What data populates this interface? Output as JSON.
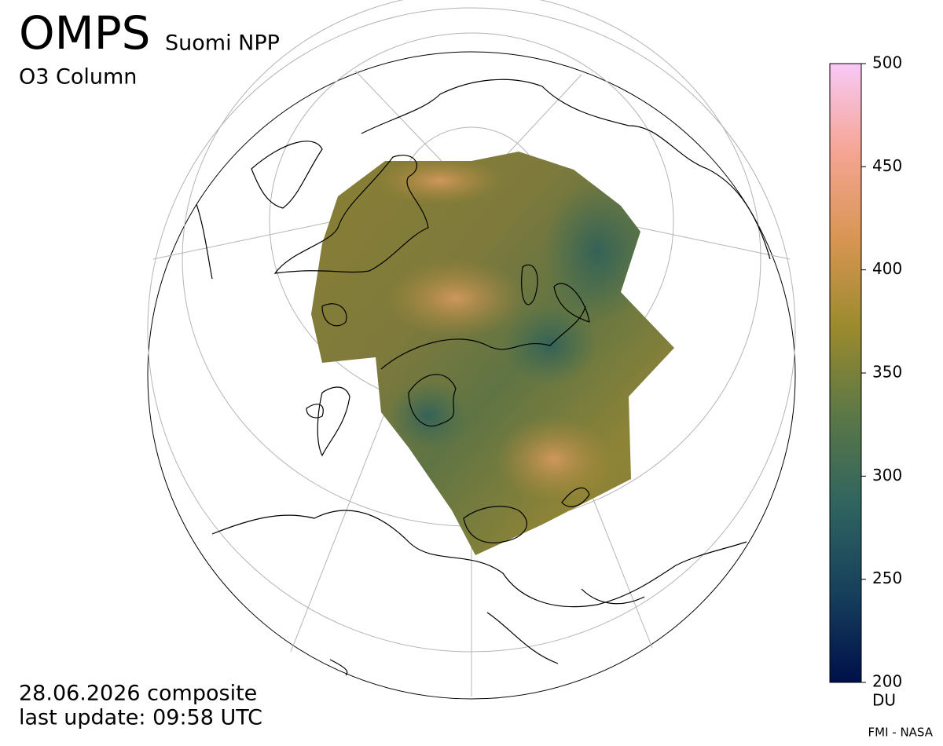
{
  "header": {
    "title": "OMPS",
    "subtitle": "Suomi NPP",
    "product": "O3 Column"
  },
  "colorbar": {
    "lim": [
      200,
      500
    ],
    "ticks": [
      200,
      250,
      300,
      350,
      400,
      450,
      500
    ],
    "unit": "DU",
    "colors": [
      "#00104a",
      "#163f5c",
      "#2f6460",
      "#5a7747",
      "#9a8a2e",
      "#d79552",
      "#f5a593",
      "#f8c9f6"
    ]
  },
  "footer": {
    "date": "28.06.2026 composite",
    "update": "last update: 09:58 UTC",
    "credit": "FMI - NASA"
  }
}
